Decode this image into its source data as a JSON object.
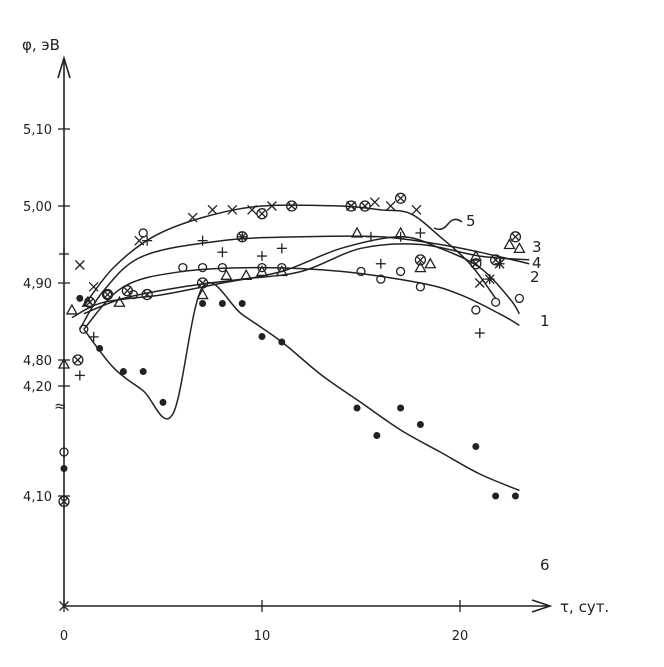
{
  "chart_data": {
    "type": "scatter",
    "title": "",
    "xlabel": "τ, сут.",
    "ylabel": "φ, эВ",
    "xlim": [
      0,
      24
    ],
    "x_ticks": [
      0,
      10,
      20
    ],
    "x_tick_labels": [
      "0",
      "10",
      "20"
    ],
    "y_upper_ticks": [
      4.8,
      4.9,
      5.0,
      5.1
    ],
    "y_upper_tick_labels": [
      "4,80",
      "4,90",
      "5,00",
      "5,10"
    ],
    "y_lower_ticks": [
      4.1,
      4.2
    ],
    "y_lower_tick_labels": [
      "4,10",
      "4,20"
    ],
    "y_axis_break": "≈",
    "grid": false,
    "legend": "curve numbers at line ends",
    "series": [
      {
        "name": "1",
        "marker": "circle",
        "points": [
          [
            0,
            4.14
          ],
          [
            1.0,
            4.84
          ],
          [
            2.2,
            4.885
          ],
          [
            3.5,
            4.885
          ],
          [
            4.0,
            4.965
          ],
          [
            6.0,
            4.92
          ],
          [
            7.0,
            4.92
          ],
          [
            8.0,
            4.92
          ],
          [
            10.0,
            4.92
          ],
          [
            11.0,
            4.92
          ],
          [
            15.0,
            4.915
          ],
          [
            16.0,
            4.905
          ],
          [
            17.0,
            4.915
          ],
          [
            18.0,
            4.895
          ],
          [
            20.8,
            4.865
          ],
          [
            21.8,
            4.875
          ],
          [
            23.0,
            4.88
          ]
        ],
        "curve": [
          [
            1.0,
            4.84
          ],
          [
            3.0,
            4.895
          ],
          [
            6.0,
            4.915
          ],
          [
            10.0,
            4.92
          ],
          [
            14.0,
            4.915
          ],
          [
            18.0,
            4.9
          ],
          [
            20.0,
            4.885
          ],
          [
            22.0,
            4.86
          ],
          [
            23.0,
            4.845
          ]
        ]
      },
      {
        "name": "2",
        "marker": "plus",
        "points": [
          [
            0,
            4.32
          ],
          [
            0.8,
            4.78
          ],
          [
            1.5,
            4.83
          ],
          [
            4.2,
            4.955
          ],
          [
            7.0,
            4.955
          ],
          [
            8.0,
            4.94
          ],
          [
            9.0,
            4.96
          ],
          [
            10.0,
            4.935
          ],
          [
            11.0,
            4.945
          ],
          [
            15.5,
            4.96
          ],
          [
            16.0,
            4.925
          ],
          [
            17.0,
            4.96
          ],
          [
            18.0,
            4.965
          ],
          [
            21.0,
            4.835
          ],
          [
            21.5,
            4.905
          ],
          [
            22.0,
            4.925
          ]
        ],
        "curve": [
          [
            0.8,
            4.84
          ],
          [
            2.0,
            4.89
          ],
          [
            4.0,
            4.935
          ],
          [
            8.0,
            4.955
          ],
          [
            12.0,
            4.96
          ],
          [
            16.0,
            4.96
          ],
          [
            19.0,
            4.95
          ],
          [
            21.0,
            4.94
          ],
          [
            23.5,
            4.925
          ]
        ]
      },
      {
        "name": "3",
        "marker": "circle-x",
        "points": [
          [
            0,
            4.095
          ],
          [
            0.7,
            4.8
          ],
          [
            1.3,
            4.875
          ],
          [
            2.2,
            4.885
          ],
          [
            3.2,
            4.89
          ],
          [
            4.2,
            4.885
          ],
          [
            7.0,
            4.9
          ],
          [
            9.0,
            4.96
          ],
          [
            10.0,
            4.99
          ],
          [
            11.5,
            5.0
          ],
          [
            14.5,
            5.0
          ],
          [
            15.2,
            5.0
          ],
          [
            17.0,
            5.01
          ],
          [
            18.0,
            4.93
          ],
          [
            20.8,
            4.925
          ],
          [
            21.8,
            4.93
          ],
          [
            22.8,
            4.96
          ]
        ],
        "curve": [
          [
            1.0,
            4.86
          ],
          [
            3.0,
            4.88
          ],
          [
            6.0,
            4.895
          ],
          [
            9.0,
            4.905
          ],
          [
            12.0,
            4.915
          ],
          [
            15.0,
            4.945
          ],
          [
            18.0,
            4.95
          ],
          [
            21.0,
            4.935
          ],
          [
            23.5,
            4.93
          ]
        ]
      },
      {
        "name": "4",
        "marker": "triangle",
        "points": [
          [
            0,
            4.22
          ],
          [
            0.4,
            4.865
          ],
          [
            1.2,
            4.875
          ],
          [
            2.8,
            4.875
          ],
          [
            7.0,
            4.885
          ],
          [
            8.2,
            4.91
          ],
          [
            9.2,
            4.91
          ],
          [
            10.0,
            4.915
          ],
          [
            11.0,
            4.915
          ],
          [
            14.8,
            4.965
          ],
          [
            17.0,
            4.965
          ],
          [
            18.0,
            4.92
          ],
          [
            18.5,
            4.925
          ],
          [
            20.8,
            4.935
          ],
          [
            22.5,
            4.95
          ],
          [
            23.0,
            4.945
          ]
        ],
        "curve": [
          [
            0.4,
            4.855
          ],
          [
            2.0,
            4.875
          ],
          [
            5.0,
            4.885
          ],
          [
            8.0,
            4.9
          ],
          [
            11.0,
            4.915
          ],
          [
            14.0,
            4.945
          ],
          [
            17.0,
            4.96
          ],
          [
            19.0,
            4.945
          ],
          [
            21.0,
            4.92
          ],
          [
            22.5,
            4.88
          ],
          [
            23.0,
            4.86
          ]
        ]
      },
      {
        "name": "5",
        "marker": "x",
        "points": [
          [
            0,
            4.0
          ],
          [
            0.8,
            4.31
          ],
          [
            1.5,
            4.895
          ],
          [
            3.8,
            4.955
          ],
          [
            6.5,
            4.985
          ],
          [
            7.5,
            4.995
          ],
          [
            8.5,
            4.995
          ],
          [
            9.5,
            4.995
          ],
          [
            10.5,
            5.0
          ],
          [
            14.5,
            5.0
          ],
          [
            15.7,
            5.005
          ],
          [
            16.5,
            5.0
          ],
          [
            17.8,
            4.995
          ],
          [
            21.0,
            4.9
          ],
          [
            21.5,
            4.905
          ],
          [
            22.0,
            4.925
          ]
        ],
        "curve": [
          [
            1.0,
            4.87
          ],
          [
            2.5,
            4.92
          ],
          [
            4.5,
            4.96
          ],
          [
            7.0,
            4.985
          ],
          [
            10.0,
            5.0
          ],
          [
            14.0,
            5.0
          ],
          [
            16.0,
            4.995
          ],
          [
            17.5,
            4.99
          ],
          [
            19.0,
            4.96
          ],
          [
            20.5,
            4.925
          ],
          [
            21.8,
            4.88
          ]
        ]
      },
      {
        "name": "6",
        "marker": "dot",
        "points": [
          [
            0,
            4.125
          ],
          [
            0.8,
            4.88
          ],
          [
            1.8,
            4.815
          ],
          [
            3.0,
            4.785
          ],
          [
            4.0,
            4.785
          ],
          [
            5.0,
            4.745
          ],
          [
            7.0,
            4.275
          ],
          [
            8.0,
            4.275
          ],
          [
            9.0,
            4.275
          ],
          [
            10.0,
            4.245
          ],
          [
            11.0,
            4.24
          ],
          [
            14.8,
            4.18
          ],
          [
            15.8,
            4.155
          ],
          [
            17.0,
            4.18
          ],
          [
            18.0,
            4.165
          ],
          [
            20.8,
            4.145
          ],
          [
            21.8,
            4.1
          ],
          [
            22.8,
            4.1
          ]
        ],
        "curve": [
          [
            1.0,
            4.84
          ],
          [
            2.5,
            4.79
          ],
          [
            4.0,
            4.76
          ],
          [
            5.5,
            4.73
          ],
          [
            7.0,
            4.29
          ],
          [
            9.0,
            4.265
          ],
          [
            11.0,
            4.24
          ],
          [
            13.0,
            4.21
          ],
          [
            15.0,
            4.185
          ],
          [
            17.0,
            4.16
          ],
          [
            19.0,
            4.14
          ],
          [
            21.0,
            4.12
          ],
          [
            23.0,
            4.105
          ]
        ]
      }
    ]
  }
}
